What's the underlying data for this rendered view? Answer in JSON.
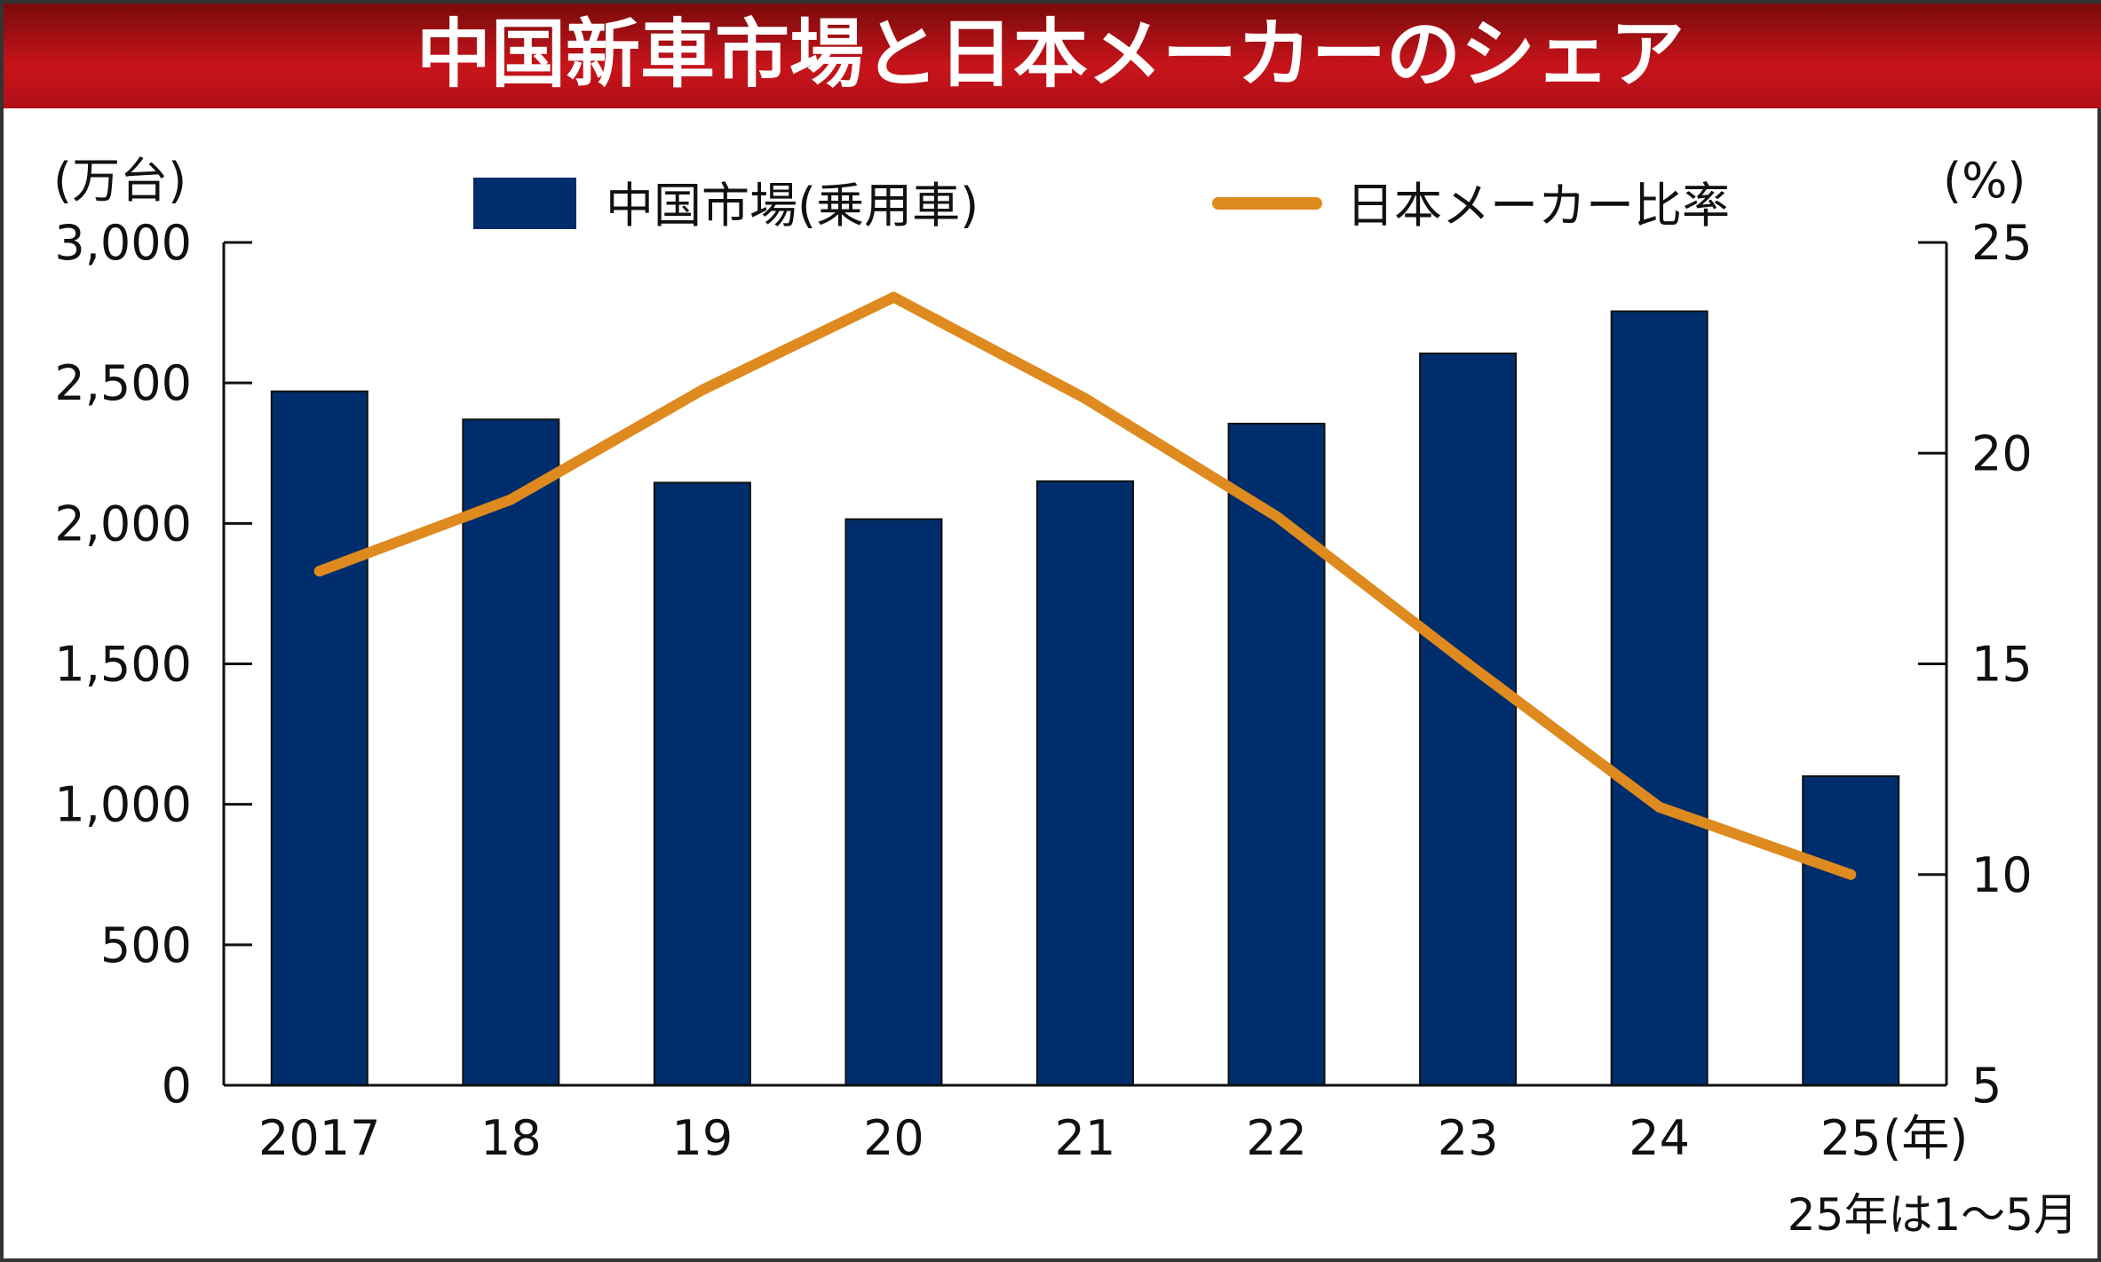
{
  "chart_data": {
    "type": "bar",
    "title": "中国新車市場と日本メーカーのシェア",
    "categories": [
      "2017",
      "18",
      "19",
      "20",
      "21",
      "22",
      "23",
      "24",
      "25"
    ],
    "x_unit": "(年)",
    "series": [
      {
        "name": "中国市場(乗用車)",
        "type": "bar",
        "axis": "left",
        "values": [
          2470,
          2370,
          2145,
          2015,
          2150,
          2355,
          2605,
          2755,
          1100
        ]
      },
      {
        "name": "日本メーカー比率",
        "type": "line",
        "axis": "right",
        "values": [
          17.2,
          18.9,
          21.5,
          23.7,
          21.3,
          18.5,
          15.0,
          11.6,
          10.0
        ]
      }
    ],
    "y_left": {
      "unit": "(万台)",
      "ylim": [
        0,
        3000
      ],
      "ticks": [
        0,
        500,
        1000,
        1500,
        2000,
        2500,
        3000
      ],
      "tick_labels": [
        "0",
        "500",
        "1,000",
        "1,500",
        "2,000",
        "2,500",
        "3,000"
      ]
    },
    "y_right": {
      "unit": "(%)",
      "ylim": [
        5,
        25
      ],
      "ticks": [
        5,
        10,
        15,
        20,
        25
      ],
      "tick_labels": [
        "5",
        "10",
        "15",
        "20",
        "25"
      ]
    },
    "legend_position": "top",
    "grid": false,
    "note": "25年は1～5月",
    "colors": {
      "bar": "#002d6b",
      "line": "#de8a1e",
      "title_bg": "#b3121a",
      "title_text": "#ffffff"
    }
  }
}
